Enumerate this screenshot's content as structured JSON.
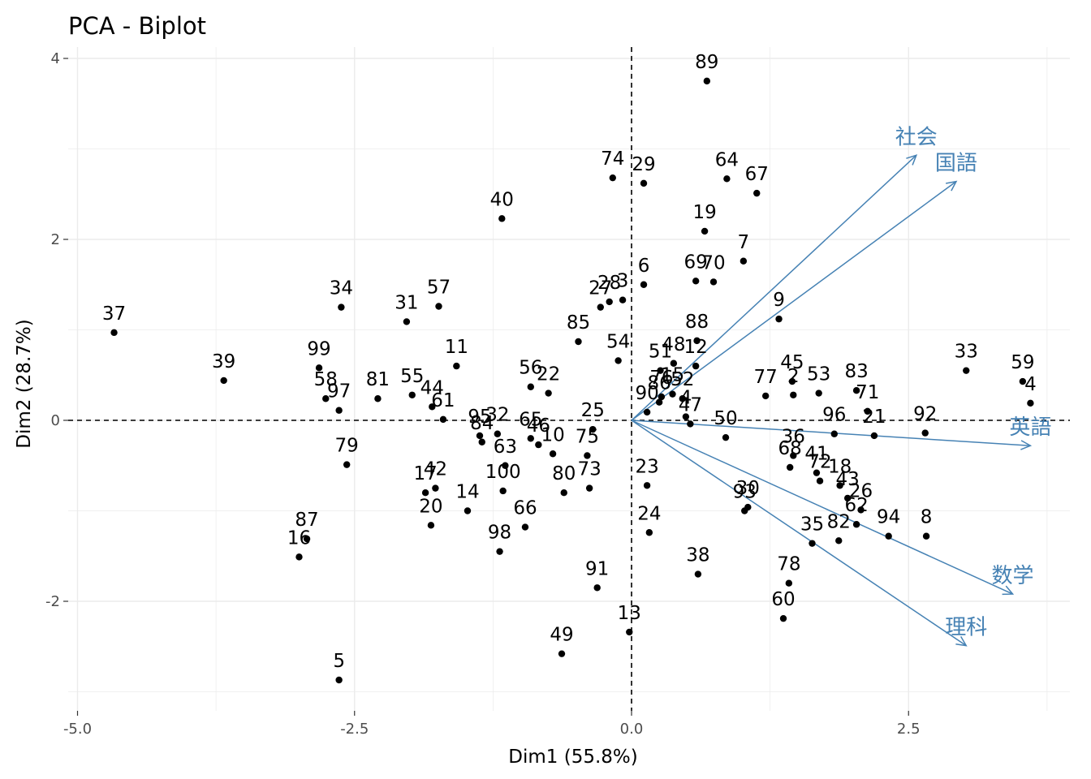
{
  "chart_data": {
    "type": "scatter",
    "title": "PCA - Biplot",
    "xlabel": "Dim1 (55.8%)",
    "ylabel": "Dim2 (28.7%)",
    "xlim": [
      -5.0,
      4.0
    ],
    "ylim": [
      -3.2,
      4.15
    ],
    "x_ticks": [
      -5.0,
      -2.5,
      0.0,
      2.5
    ],
    "x_tick_labels": [
      "-5.0",
      "-2.5",
      "0.0",
      "2.5"
    ],
    "y_ticks": [
      -2,
      0,
      2,
      4
    ],
    "y_tick_labels": [
      "-2",
      "0",
      "2",
      "4"
    ],
    "grid": true,
    "reference_lines": {
      "x": 0,
      "y": 0,
      "style": "dashed"
    },
    "colors": {
      "points": "#000000",
      "variables": "#4682b4",
      "grid": "#ebebeb"
    },
    "points": [
      {
        "label": "89",
        "x": 0.68,
        "y": 3.75
      },
      {
        "label": "74",
        "x": -0.17,
        "y": 2.68
      },
      {
        "label": "29",
        "x": 0.11,
        "y": 2.62
      },
      {
        "label": "64",
        "x": 0.86,
        "y": 2.67
      },
      {
        "label": "67",
        "x": 1.13,
        "y": 2.51
      },
      {
        "label": "40",
        "x": -1.17,
        "y": 2.23
      },
      {
        "label": "19",
        "x": 0.66,
        "y": 2.09
      },
      {
        "label": "7",
        "x": 1.01,
        "y": 1.76
      },
      {
        "label": "69",
        "x": 0.58,
        "y": 1.54
      },
      {
        "label": "70",
        "x": 0.74,
        "y": 1.53
      },
      {
        "label": "6",
        "x": 0.11,
        "y": 1.5
      },
      {
        "label": "28",
        "x": -0.2,
        "y": 1.31
      },
      {
        "label": "3",
        "x": -0.08,
        "y": 1.33
      },
      {
        "label": "27",
        "x": -0.28,
        "y": 1.25
      },
      {
        "label": "9",
        "x": 1.33,
        "y": 1.12
      },
      {
        "label": "88",
        "x": 0.59,
        "y": 0.88
      },
      {
        "label": "85",
        "x": -0.48,
        "y": 0.87
      },
      {
        "label": "34",
        "x": -2.62,
        "y": 1.25
      },
      {
        "label": "57",
        "x": -1.74,
        "y": 1.26
      },
      {
        "label": "31",
        "x": -2.03,
        "y": 1.09
      },
      {
        "label": "37",
        "x": -4.67,
        "y": 0.97
      },
      {
        "label": "54",
        "x": -0.12,
        "y": 0.66
      },
      {
        "label": "48",
        "x": 0.38,
        "y": 0.63
      },
      {
        "label": "12",
        "x": 0.58,
        "y": 0.6
      },
      {
        "label": "51",
        "x": 0.26,
        "y": 0.55
      },
      {
        "label": "11",
        "x": -1.58,
        "y": 0.6
      },
      {
        "label": "39",
        "x": -3.68,
        "y": 0.44
      },
      {
        "label": "99",
        "x": -2.82,
        "y": 0.58
      },
      {
        "label": "58",
        "x": -2.76,
        "y": 0.24
      },
      {
        "label": "97",
        "x": -2.64,
        "y": 0.11
      },
      {
        "label": "81",
        "x": -2.29,
        "y": 0.24
      },
      {
        "label": "55",
        "x": -1.98,
        "y": 0.28
      },
      {
        "label": "44",
        "x": -1.8,
        "y": 0.15
      },
      {
        "label": "61",
        "x": -1.7,
        "y": 0.01
      },
      {
        "label": "56",
        "x": -0.91,
        "y": 0.37
      },
      {
        "label": "22",
        "x": -0.75,
        "y": 0.3
      },
      {
        "label": "79",
        "x": -2.57,
        "y": -0.49
      },
      {
        "label": "95",
        "x": -1.37,
        "y": -0.17
      },
      {
        "label": "32",
        "x": -1.21,
        "y": -0.15
      },
      {
        "label": "84",
        "x": -1.35,
        "y": -0.24
      },
      {
        "label": "65",
        "x": -0.91,
        "y": -0.2
      },
      {
        "label": "10",
        "x": -0.71,
        "y": -0.37
      },
      {
        "label": "46",
        "x": -0.84,
        "y": -0.27
      },
      {
        "label": "63",
        "x": -1.14,
        "y": -0.5
      },
      {
        "label": "75",
        "x": -0.4,
        "y": -0.39
      },
      {
        "label": "25",
        "x": -0.35,
        "y": -0.1
      },
      {
        "label": "73",
        "x": -0.38,
        "y": -0.75
      },
      {
        "label": "80",
        "x": -0.61,
        "y": -0.8
      },
      {
        "label": "100",
        "x": -1.16,
        "y": -0.78
      },
      {
        "label": "17",
        "x": -1.86,
        "y": -0.8
      },
      {
        "label": "42",
        "x": -1.77,
        "y": -0.75
      },
      {
        "label": "14",
        "x": -1.48,
        "y": -1.0
      },
      {
        "label": "20",
        "x": -1.81,
        "y": -1.16
      },
      {
        "label": "66",
        "x": -0.96,
        "y": -1.18
      },
      {
        "label": "98",
        "x": -1.19,
        "y": -1.45
      },
      {
        "label": "87",
        "x": -2.93,
        "y": -1.31
      },
      {
        "label": "16",
        "x": -3.0,
        "y": -1.51
      },
      {
        "label": "5",
        "x": -2.64,
        "y": -2.87
      },
      {
        "label": "91",
        "x": -0.31,
        "y": -1.85
      },
      {
        "label": "13",
        "x": -0.02,
        "y": -2.34
      },
      {
        "label": "49",
        "x": -0.63,
        "y": -2.58
      },
      {
        "label": "23",
        "x": 0.14,
        "y": -0.72
      },
      {
        "label": "24",
        "x": 0.16,
        "y": -1.24
      },
      {
        "label": "38",
        "x": 0.6,
        "y": -1.7
      },
      {
        "label": "76",
        "x": 0.27,
        "y": 0.26
      },
      {
        "label": "86",
        "x": 0.25,
        "y": 0.2
      },
      {
        "label": "15",
        "x": 0.37,
        "y": 0.29
      },
      {
        "label": "90",
        "x": 0.14,
        "y": 0.09
      },
      {
        "label": "52",
        "x": 0.46,
        "y": 0.24
      },
      {
        "label": "4",
        "x": 0.49,
        "y": 0.04
      },
      {
        "label": "47",
        "x": 0.53,
        "y": -0.04
      },
      {
        "label": "50",
        "x": 0.85,
        "y": -0.19
      },
      {
        "label": "77",
        "x": 1.21,
        "y": 0.27
      },
      {
        "label": "45",
        "x": 1.45,
        "y": 0.43
      },
      {
        "label": "2",
        "x": 1.46,
        "y": 0.28
      },
      {
        "label": "53",
        "x": 1.69,
        "y": 0.3
      },
      {
        "label": "83",
        "x": 2.03,
        "y": 0.33
      },
      {
        "label": "71",
        "x": 2.13,
        "y": 0.1
      },
      {
        "label": "21",
        "x": 2.19,
        "y": -0.17
      },
      {
        "label": "96",
        "x": 1.83,
        "y": -0.15
      },
      {
        "label": "92",
        "x": 2.65,
        "y": -0.14
      },
      {
        "label": "33",
        "x": 3.02,
        "y": 0.55
      },
      {
        "label": "59",
        "x": 3.53,
        "y": 0.43
      },
      {
        "label": "4",
        "x": 3.6,
        "y": 0.19
      },
      {
        "label": "36",
        "x": 1.46,
        "y": -0.39
      },
      {
        "label": "68",
        "x": 1.43,
        "y": -0.52
      },
      {
        "label": "41",
        "x": 1.67,
        "y": -0.58
      },
      {
        "label": "72",
        "x": 1.7,
        "y": -0.67
      },
      {
        "label": "18",
        "x": 1.88,
        "y": -0.72
      },
      {
        "label": "26",
        "x": 2.07,
        "y": -0.99
      },
      {
        "label": "43",
        "x": 1.95,
        "y": -0.86
      },
      {
        "label": "62",
        "x": 2.03,
        "y": -1.15
      },
      {
        "label": "82",
        "x": 1.87,
        "y": -1.33
      },
      {
        "label": "35",
        "x": 1.63,
        "y": -1.36
      },
      {
        "label": "94",
        "x": 2.32,
        "y": -1.28
      },
      {
        "label": "8",
        "x": 2.66,
        "y": -1.28
      },
      {
        "label": "30",
        "x": 1.05,
        "y": -0.96
      },
      {
        "label": "93",
        "x": 1.02,
        "y": -1.0
      },
      {
        "label": "78",
        "x": 1.42,
        "y": -1.8
      },
      {
        "label": "60",
        "x": 1.37,
        "y": -2.19
      }
    ],
    "variables": [
      {
        "label": "社会",
        "x": 2.57,
        "y": 2.93
      },
      {
        "label": "国語",
        "x": 2.93,
        "y": 2.64
      },
      {
        "label": "英語",
        "x": 3.6,
        "y": -0.28
      },
      {
        "label": "数学",
        "x": 3.44,
        "y": -1.92
      },
      {
        "label": "理科",
        "x": 3.02,
        "y": -2.49
      }
    ]
  }
}
